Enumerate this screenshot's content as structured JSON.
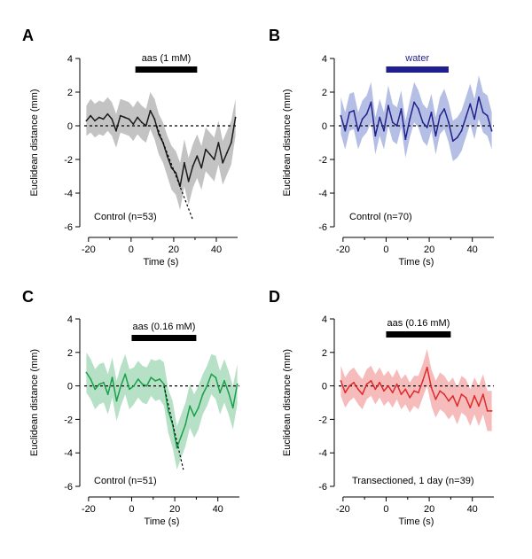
{
  "chart_data": [
    {
      "type": "line",
      "panel": "A",
      "stimulus": "aas (1 mM)",
      "stimulus_color": "#000000",
      "stimulus_span": [
        2,
        31
      ],
      "annotation": "Control (n=53)",
      "xlabel": "Time (s)",
      "ylabel": "Euclidean distance (mm)",
      "xlim": [
        -22,
        50
      ],
      "ylim": [
        -6,
        4
      ],
      "xticks": [
        -20,
        0,
        20,
        40
      ],
      "yticks": [
        4,
        2,
        0,
        -2,
        -4,
        -6
      ],
      "line_color": "#1a1a1a",
      "band_color": "#b8b8b8",
      "zero_line": true,
      "fit_line": {
        "x": [
          12,
          29
        ],
        "y": [
          0,
          -5.6
        ]
      },
      "x": [
        -21,
        -19,
        -17,
        -15,
        -13,
        -11,
        -9,
        -7,
        -5,
        -3,
        -1,
        1,
        3,
        5,
        7,
        9,
        11,
        13,
        15,
        17,
        19,
        21,
        23,
        25,
        27,
        29,
        31,
        33,
        35,
        37,
        39,
        41,
        43,
        45,
        47,
        49
      ],
      "y": [
        0.3,
        0.6,
        0.3,
        0.5,
        0.4,
        0.7,
        0.4,
        -0.3,
        0.6,
        0.5,
        0.4,
        0.1,
        0.5,
        0.2,
        0.0,
        0.9,
        0.4,
        -0.5,
        -1.0,
        -1.8,
        -2.5,
        -2.8,
        -3.6,
        -2.2,
        -3.3,
        -2.4,
        -1.8,
        -2.5,
        -1.4,
        -1.7,
        -2.0,
        -1.0,
        -2.2,
        -1.6,
        -1.0,
        0.5
      ],
      "spread": [
        0.9,
        1.0,
        1.0,
        1.0,
        1.0,
        1.0,
        1.0,
        1.0,
        1.0,
        1.0,
        1.0,
        1.0,
        1.0,
        1.0,
        1.0,
        1.1,
        1.2,
        1.2,
        1.2,
        1.2,
        1.3,
        1.3,
        1.4,
        1.4,
        1.4,
        1.3,
        1.3,
        1.3,
        1.3,
        1.3,
        1.3,
        1.3,
        1.3,
        1.3,
        1.3,
        1.1
      ]
    },
    {
      "type": "line",
      "panel": "B",
      "stimulus": "water",
      "stimulus_color": "#1f1f8f",
      "stimulus_span": [
        0,
        29
      ],
      "annotation": "Control (n=70)",
      "xlabel": "Time (s)",
      "ylabel": "Euclidean distance (mm)",
      "xlim": [
        -22,
        50
      ],
      "ylim": [
        -6,
        4
      ],
      "xticks": [
        -20,
        0,
        20,
        40
      ],
      "yticks": [
        4,
        2,
        0,
        -2,
        -4,
        -6
      ],
      "line_color": "#22228a",
      "band_color": "#a8b4e0",
      "zero_line": true,
      "x": [
        -21,
        -19,
        -17,
        -15,
        -13,
        -11,
        -9,
        -7,
        -5,
        -3,
        -1,
        1,
        3,
        5,
        7,
        9,
        11,
        13,
        15,
        17,
        19,
        21,
        23,
        25,
        27,
        29,
        31,
        33,
        35,
        37,
        39,
        41,
        43,
        45,
        47,
        49
      ],
      "y": [
        0.6,
        -0.3,
        0.8,
        0.9,
        -0.3,
        0.4,
        0.7,
        1.4,
        -0.6,
        0.5,
        -0.3,
        1.2,
        0.2,
        0.0,
        1.0,
        -0.8,
        0.4,
        1.4,
        1.0,
        0.2,
        -0.1,
        0.8,
        -0.6,
        0.6,
        1.0,
        0.2,
        -0.9,
        -0.7,
        -0.3,
        0.5,
        1.3,
        0.4,
        1.7,
        0.8,
        0.6,
        -0.3
      ],
      "spread": [
        1.1,
        1.1,
        1.1,
        1.1,
        1.1,
        1.1,
        1.1,
        1.2,
        1.1,
        1.1,
        1.1,
        1.2,
        1.1,
        1.1,
        1.1,
        1.1,
        1.1,
        1.2,
        1.1,
        1.1,
        1.1,
        1.1,
        1.1,
        1.1,
        1.2,
        1.2,
        1.2,
        1.2,
        1.2,
        1.2,
        1.2,
        1.2,
        1.3,
        1.2,
        1.2,
        1.1
      ]
    },
    {
      "type": "line",
      "panel": "C",
      "stimulus": "aas (0.16 mM)",
      "stimulus_color": "#000000",
      "stimulus_span": [
        0,
        30
      ],
      "annotation": "Control (n=51)",
      "xlabel": "Time (s)",
      "ylabel": "Euclidean distance (mm)",
      "xlim": [
        -22,
        50
      ],
      "ylim": [
        -6,
        4
      ],
      "xticks": [
        -20,
        0,
        20,
        40
      ],
      "yticks": [
        4,
        2,
        0,
        -2,
        -4,
        -6
      ],
      "line_color": "#1aa04a",
      "band_color": "#a9dcbd",
      "zero_line": true,
      "fit_line": {
        "x": [
          15,
          24
        ],
        "y": [
          0,
          -5
        ]
      },
      "x": [
        -21,
        -19,
        -17,
        -15,
        -13,
        -11,
        -9,
        -7,
        -5,
        -3,
        -1,
        1,
        3,
        5,
        7,
        9,
        11,
        13,
        15,
        17,
        19,
        21,
        23,
        25,
        27,
        29,
        31,
        33,
        35,
        37,
        39,
        41,
        43,
        45,
        47,
        49
      ],
      "y": [
        0.8,
        0.4,
        -0.2,
        0.1,
        0.2,
        -0.5,
        0.5,
        -0.9,
        0.0,
        0.7,
        -0.2,
        0.0,
        0.4,
        0.1,
        0.0,
        0.5,
        0.3,
        0.4,
        0.1,
        -1.5,
        -2.3,
        -3.7,
        -3.0,
        -2.3,
        -1.2,
        -1.8,
        -1.3,
        -0.5,
        0.0,
        0.7,
        0.5,
        -0.4,
        0.3,
        -0.4,
        -1.3,
        0.1
      ],
      "spread": [
        1.2,
        1.2,
        1.2,
        1.2,
        1.2,
        1.2,
        1.2,
        1.2,
        1.2,
        1.2,
        1.2,
        1.1,
        1.1,
        1.1,
        1.1,
        1.1,
        1.2,
        1.2,
        1.3,
        1.3,
        1.4,
        1.3,
        1.3,
        1.3,
        1.3,
        1.3,
        1.3,
        1.2,
        1.2,
        1.2,
        1.3,
        1.3,
        1.3,
        1.3,
        1.3,
        1.2
      ]
    },
    {
      "type": "line",
      "panel": "D",
      "stimulus": "aas (0.16 mM)",
      "stimulus_color": "#000000",
      "stimulus_span": [
        0,
        30
      ],
      "annotation": "Transectioned, 1 day (n=39)",
      "xlabel": "Time (s)",
      "ylabel": "Euclidean distance (mm)",
      "xlim": [
        -22,
        50
      ],
      "ylim": [
        -6,
        4
      ],
      "xticks": [
        -20,
        0,
        20,
        40
      ],
      "yticks": [
        4,
        2,
        0,
        -2,
        -4,
        -6
      ],
      "line_color": "#e02a2a",
      "band_color": "#f5b0b0",
      "zero_line": true,
      "x": [
        -21,
        -19,
        -17,
        -15,
        -13,
        -11,
        -9,
        -7,
        -5,
        -3,
        -1,
        1,
        3,
        5,
        7,
        9,
        11,
        13,
        15,
        17,
        19,
        21,
        23,
        25,
        27,
        29,
        31,
        33,
        35,
        37,
        39,
        41,
        43,
        45,
        47,
        49
      ],
      "y": [
        0.3,
        -0.4,
        0.0,
        0.2,
        -0.2,
        -0.5,
        0.1,
        0.3,
        -0.2,
        0.2,
        -0.3,
        0.0,
        -0.4,
        0.1,
        -0.5,
        -0.2,
        -0.7,
        -0.3,
        -0.4,
        0.3,
        1.1,
        -0.1,
        -0.8,
        -0.3,
        -0.5,
        -0.9,
        -0.6,
        -1.2,
        -0.5,
        -0.7,
        -1.3,
        -0.6,
        -1.2,
        -0.5,
        -1.5,
        -1.5
      ],
      "spread": [
        0.9,
        0.9,
        0.9,
        0.9,
        0.9,
        0.9,
        0.9,
        0.9,
        0.9,
        0.9,
        0.9,
        0.9,
        0.9,
        0.9,
        0.9,
        0.9,
        0.9,
        0.9,
        1.0,
        1.0,
        1.1,
        1.1,
        1.1,
        1.1,
        1.1,
        1.1,
        1.1,
        1.1,
        1.1,
        1.1,
        1.1,
        1.1,
        1.2,
        1.2,
        1.2,
        1.2
      ]
    }
  ]
}
